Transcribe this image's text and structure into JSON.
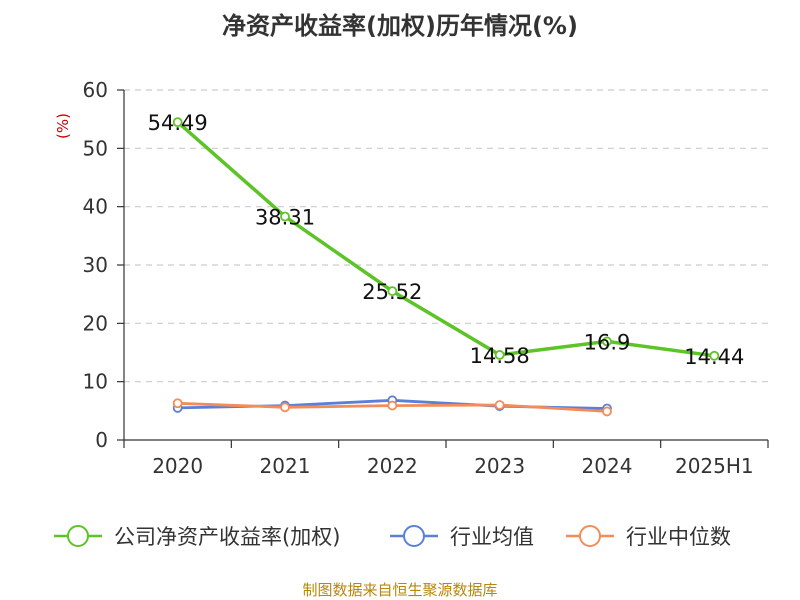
{
  "title": "净资产收益率(加权)历年情况(%)",
  "source": "制图数据来自恒生聚源数据库",
  "chart_data": {
    "type": "line",
    "title": "净资产收益率(加权)历年情况(%)",
    "ylabel": "(%)",
    "xlabel": "",
    "ylim": [
      0,
      60
    ],
    "yticks": [
      0,
      10,
      20,
      30,
      40,
      50,
      60
    ],
    "categories": [
      "2020",
      "2021",
      "2022",
      "2023",
      "2024",
      "2025H1"
    ],
    "grid": true,
    "legend_position": "bottom",
    "series": [
      {
        "name": "公司净资产收益率(加权)",
        "color": "#5cc427",
        "values": [
          54.49,
          38.31,
          25.52,
          14.58,
          16.9,
          14.44
        ],
        "labels": [
          "54.49",
          "38.31",
          "25.52",
          "14.58",
          "16.9",
          "14.44"
        ]
      },
      {
        "name": "行业均值",
        "color": "#5b7fd6",
        "values": [
          5.5,
          5.9,
          6.8,
          5.8,
          5.4,
          null
        ]
      },
      {
        "name": "行业中位数",
        "color": "#f28c5a",
        "values": [
          6.3,
          5.6,
          5.9,
          6.0,
          4.9,
          null
        ]
      }
    ]
  }
}
